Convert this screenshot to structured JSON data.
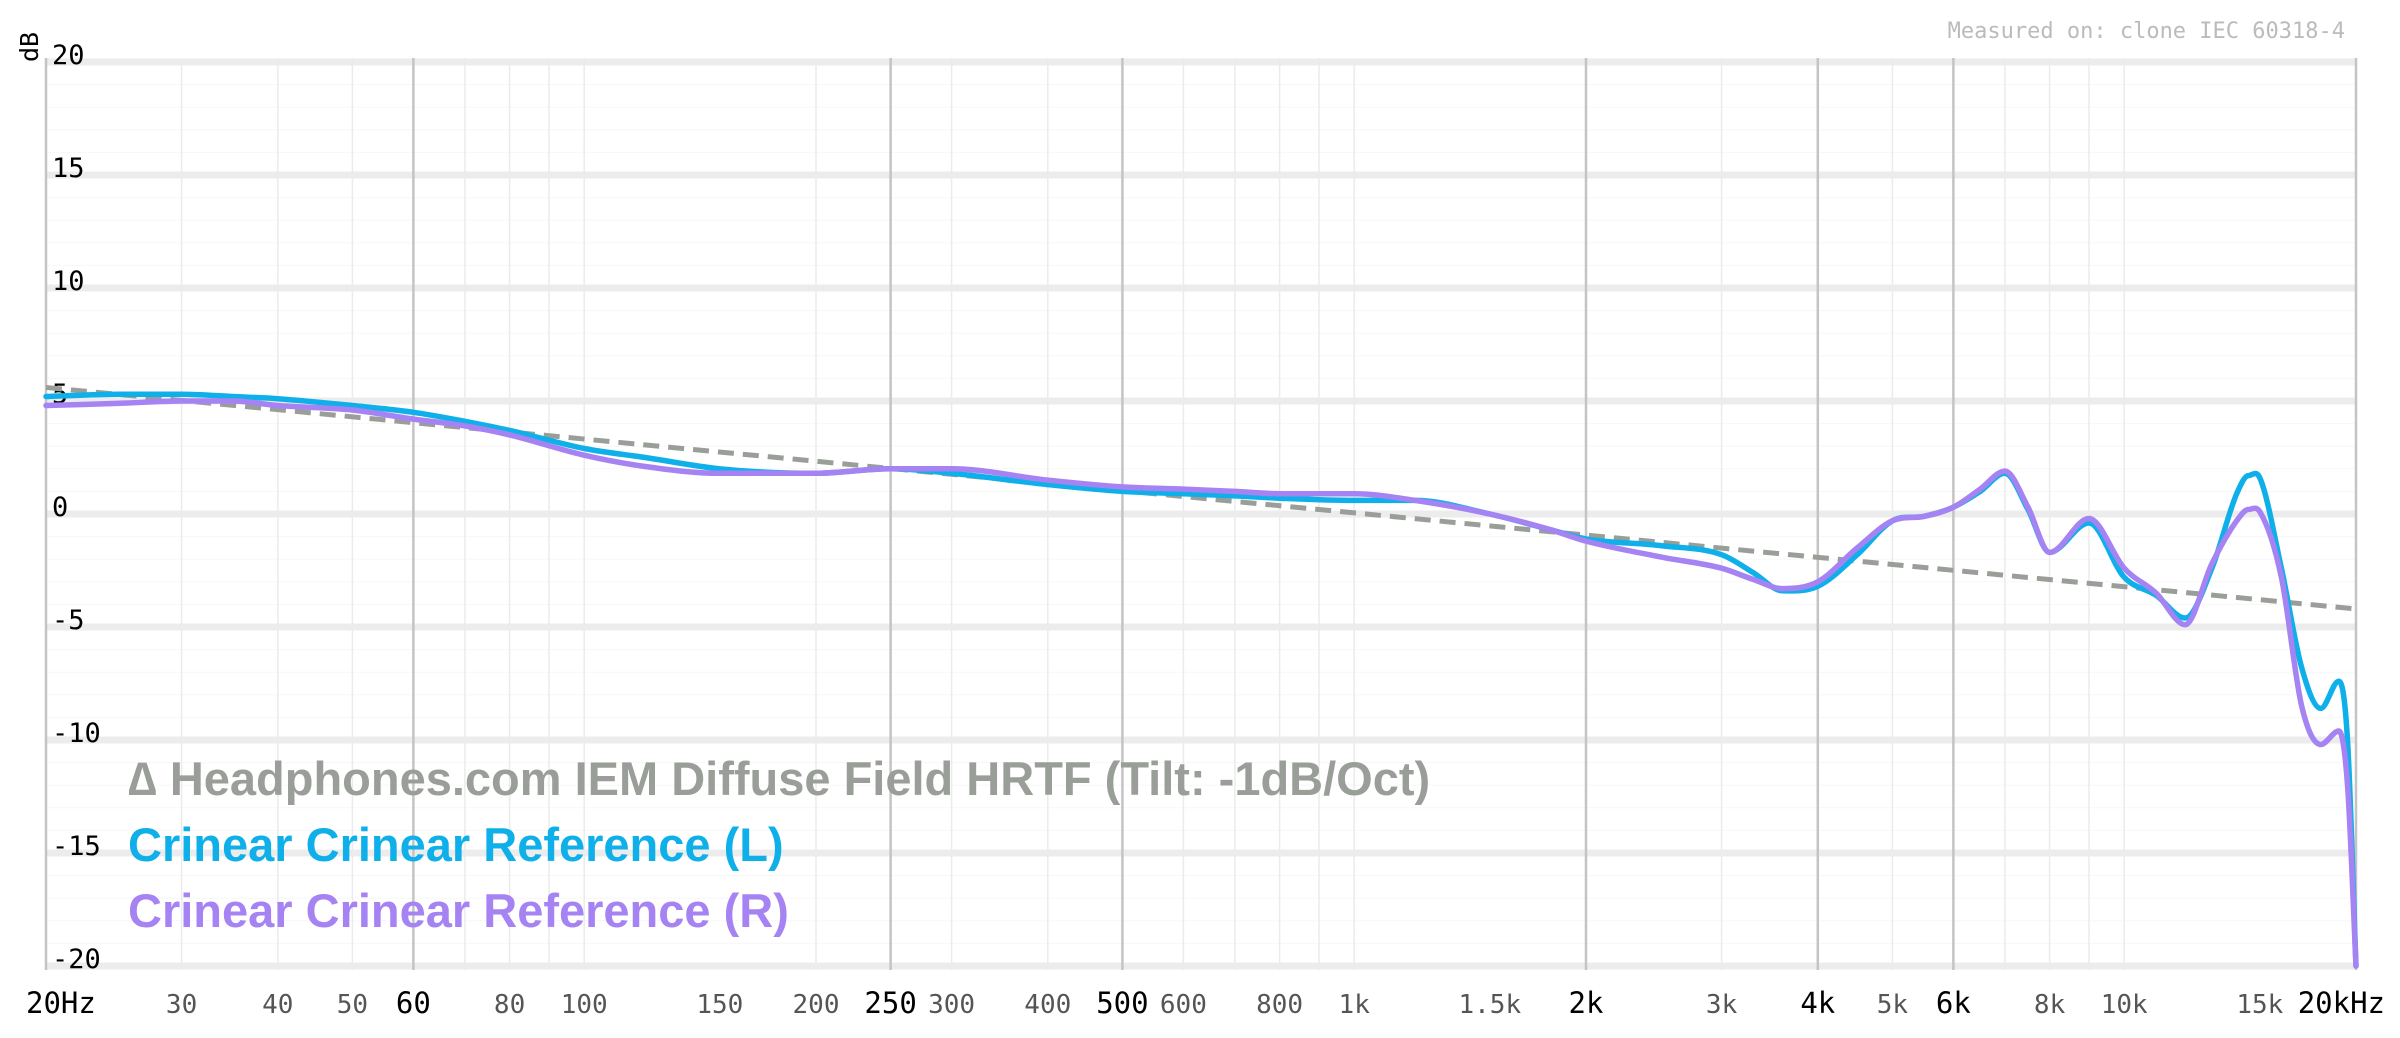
{
  "chart_data": {
    "type": "line",
    "ylabel": "dB",
    "xlabel": "",
    "x_scale": "log",
    "xlim": [
      20,
      20000
    ],
    "ylim": [
      -20,
      20
    ],
    "grid": true,
    "legend_position": "bottom-left",
    "measured_on": "Measured on: clone IEC 60318-4",
    "y_ticks": [
      "20",
      "15",
      "10",
      "5",
      "0",
      "-5",
      "-10",
      "-15",
      "-20"
    ],
    "y_tick_values": [
      20,
      15,
      10,
      5,
      0,
      -5,
      -10,
      -15,
      -20
    ],
    "x_ticks": [
      {
        "value": 20,
        "label": "20Hz",
        "major": true
      },
      {
        "value": 30,
        "label": "30",
        "major": false
      },
      {
        "value": 40,
        "label": "40",
        "major": false
      },
      {
        "value": 50,
        "label": "50",
        "major": false
      },
      {
        "value": 60,
        "label": "60",
        "major": true
      },
      {
        "value": 80,
        "label": "80",
        "major": false
      },
      {
        "value": 100,
        "label": "100",
        "major": false
      },
      {
        "value": 150,
        "label": "150",
        "major": false
      },
      {
        "value": 200,
        "label": "200",
        "major": false
      },
      {
        "value": 250,
        "label": "250",
        "major": true
      },
      {
        "value": 300,
        "label": "300",
        "major": false
      },
      {
        "value": 400,
        "label": "400",
        "major": false
      },
      {
        "value": 500,
        "label": "500",
        "major": true
      },
      {
        "value": 600,
        "label": "600",
        "major": false
      },
      {
        "value": 800,
        "label": "800",
        "major": false
      },
      {
        "value": 1000,
        "label": "1k",
        "major": false
      },
      {
        "value": 1500,
        "label": "1.5k",
        "major": false
      },
      {
        "value": 2000,
        "label": "2k",
        "major": true
      },
      {
        "value": 3000,
        "label": "3k",
        "major": false
      },
      {
        "value": 4000,
        "label": "4k",
        "major": true
      },
      {
        "value": 5000,
        "label": "5k",
        "major": false
      },
      {
        "value": 6000,
        "label": "6k",
        "major": true
      },
      {
        "value": 8000,
        "label": "8k",
        "major": false
      },
      {
        "value": 10000,
        "label": "10k",
        "major": false
      },
      {
        "value": 15000,
        "label": "15k",
        "major": false
      },
      {
        "value": 20000,
        "label": "20kHz",
        "major": true
      }
    ],
    "series": [
      {
        "name": "∆ Headphones.com IEM Diffuse Field HRTF (Tilt: -1dB/Oct)",
        "color": "#9a9e98",
        "style": "dashed",
        "x": [
          20,
          20000
        ],
        "y": [
          5.6,
          -4.2
        ]
      },
      {
        "name": "Crinear Crinear Reference (L)",
        "color": "#0fb0ea",
        "style": "solid",
        "x": [
          20,
          25,
          30,
          35,
          40,
          50,
          60,
          70,
          80,
          100,
          120,
          150,
          200,
          250,
          300,
          400,
          500,
          600,
          700,
          800,
          1000,
          1200,
          1500,
          1800,
          2000,
          2500,
          3000,
          3300,
          3600,
          4000,
          4500,
          5000,
          5500,
          6000,
          6500,
          7000,
          7500,
          8000,
          9000,
          10000,
          11000,
          12000,
          13000,
          14000,
          14500,
          15000,
          16000,
          17000,
          18000,
          19000,
          19500,
          20000
        ],
        "y": [
          5.2,
          5.3,
          5.3,
          5.2,
          5.1,
          4.8,
          4.5,
          4.1,
          3.7,
          2.9,
          2.5,
          2.0,
          1.8,
          2.0,
          1.8,
          1.3,
          1.0,
          0.9,
          0.8,
          0.7,
          0.6,
          0.6,
          0.0,
          -0.7,
          -1.1,
          -1.4,
          -1.8,
          -2.6,
          -3.4,
          -3.2,
          -1.8,
          -0.3,
          -0.1,
          0.3,
          1.0,
          1.8,
          0.2,
          -1.7,
          -0.4,
          -2.8,
          -3.6,
          -4.6,
          -2.4,
          0.9,
          1.7,
          1.6,
          -2.4,
          -6.8,
          -8.6,
          -7.4,
          -10.0,
          -20.0
        ]
      },
      {
        "name": "Crinear Crinear Reference (R)",
        "color": "#a683f2",
        "style": "solid",
        "x": [
          20,
          25,
          30,
          35,
          40,
          50,
          60,
          70,
          80,
          100,
          120,
          150,
          200,
          250,
          300,
          400,
          500,
          600,
          700,
          800,
          1000,
          1200,
          1500,
          1800,
          2000,
          2500,
          3000,
          3300,
          3600,
          4000,
          4500,
          5000,
          5500,
          6000,
          6500,
          7000,
          7500,
          8000,
          9000,
          10000,
          11000,
          12000,
          13000,
          14000,
          14500,
          15000,
          16000,
          17000,
          18000,
          19000,
          19500,
          20000
        ],
        "y": [
          4.8,
          4.9,
          5.0,
          5.0,
          4.8,
          4.6,
          4.2,
          3.9,
          3.5,
          2.6,
          2.1,
          1.8,
          1.8,
          2.0,
          2.0,
          1.5,
          1.2,
          1.1,
          1.0,
          0.9,
          0.9,
          0.6,
          0.0,
          -0.7,
          -1.2,
          -1.9,
          -2.4,
          -2.9,
          -3.3,
          -3.0,
          -1.5,
          -0.3,
          -0.1,
          0.3,
          1.1,
          1.9,
          0.3,
          -1.7,
          -0.2,
          -2.4,
          -3.5,
          -4.9,
          -2.2,
          -0.3,
          0.2,
          0.1,
          -2.8,
          -8.5,
          -10.2,
          -9.6,
          -12.0,
          -20.0
        ]
      }
    ]
  }
}
